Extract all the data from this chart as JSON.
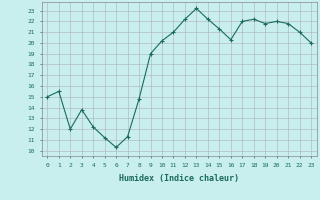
{
  "x": [
    0,
    1,
    2,
    3,
    4,
    5,
    6,
    7,
    8,
    9,
    10,
    11,
    12,
    13,
    14,
    15,
    16,
    17,
    18,
    19,
    20,
    21,
    22,
    23
  ],
  "y": [
    15,
    15.5,
    12,
    13.8,
    12.2,
    11.2,
    10.3,
    11.3,
    14.8,
    19,
    20.2,
    21,
    22.2,
    23.2,
    22.2,
    21.3,
    20.3,
    22,
    22.2,
    21.8,
    22,
    21.8,
    21,
    20
  ],
  "line_color": "#1a6b5a",
  "marker": "D",
  "marker_size": 2.0,
  "bg_color": "#c8eeee",
  "grid_color": "#b0b0b0",
  "xlabel": "Humidex (Indice chaleur)",
  "ylabel_ticks": [
    10,
    11,
    12,
    13,
    14,
    15,
    16,
    17,
    18,
    19,
    20,
    21,
    22,
    23
  ],
  "xlim": [
    -0.5,
    23.5
  ],
  "ylim": [
    9.5,
    23.8
  ]
}
